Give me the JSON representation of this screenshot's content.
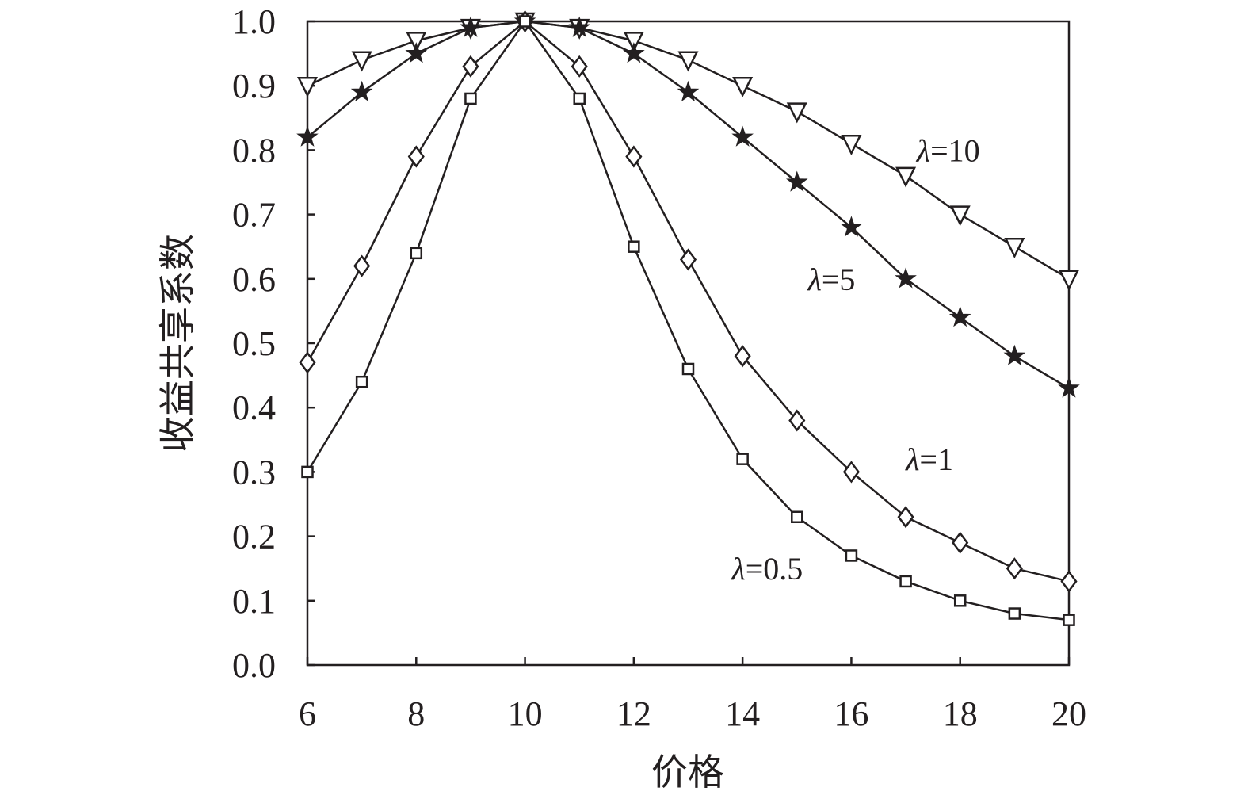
{
  "chart_data": {
    "type": "line",
    "xlabel": "价格",
    "ylabel": "收益共享系数",
    "xlim": [
      6,
      20
    ],
    "ylim": [
      0,
      1
    ],
    "grid": false,
    "x_ticks": [
      "6",
      "8",
      "10",
      "12",
      "14",
      "16",
      "18",
      "20"
    ],
    "y_ticks": [
      "0.0",
      "0.1",
      "0.2",
      "0.3",
      "0.4",
      "0.5",
      "0.6",
      "0.7",
      "0.8",
      "0.9",
      "1.0"
    ],
    "x": [
      6,
      7,
      8,
      9,
      10,
      11,
      12,
      13,
      14,
      15,
      16,
      17,
      18,
      19,
      20
    ],
    "series": [
      {
        "name": "λ=10",
        "marker": "triangle-down",
        "values": [
          0.9,
          0.94,
          0.97,
          0.99,
          1.0,
          0.99,
          0.97,
          0.94,
          0.9,
          0.86,
          0.81,
          0.76,
          0.7,
          0.65,
          0.6
        ]
      },
      {
        "name": "λ=5",
        "marker": "star",
        "values": [
          0.82,
          0.89,
          0.95,
          0.99,
          1.0,
          0.99,
          0.95,
          0.89,
          0.82,
          0.75,
          0.68,
          0.6,
          0.54,
          0.48,
          0.43
        ]
      },
      {
        "name": "λ=1",
        "marker": "diamond",
        "values": [
          0.47,
          0.62,
          0.79,
          0.93,
          1.0,
          0.93,
          0.79,
          0.63,
          0.48,
          0.38,
          0.3,
          0.23,
          0.19,
          0.15,
          0.13
        ]
      },
      {
        "name": "λ=0.5",
        "marker": "square",
        "values": [
          0.3,
          0.44,
          0.64,
          0.88,
          1.0,
          0.88,
          0.65,
          0.46,
          0.32,
          0.23,
          0.17,
          0.13,
          0.1,
          0.08,
          0.07
        ]
      }
    ],
    "series_labels": [
      {
        "lambda": "λ",
        "rest": "=10",
        "at_x": 17.2,
        "at_y": 0.8
      },
      {
        "lambda": "λ",
        "rest": "=5",
        "at_x": 15.2,
        "at_y": 0.6
      },
      {
        "lambda": "λ",
        "rest": "=1",
        "at_x": 17.0,
        "at_y": 0.32
      },
      {
        "lambda": "λ",
        "rest": "=0.5",
        "at_x": 13.8,
        "at_y": 0.15
      }
    ],
    "colors": {
      "line": "#231f20",
      "background": "#ffffff"
    }
  }
}
